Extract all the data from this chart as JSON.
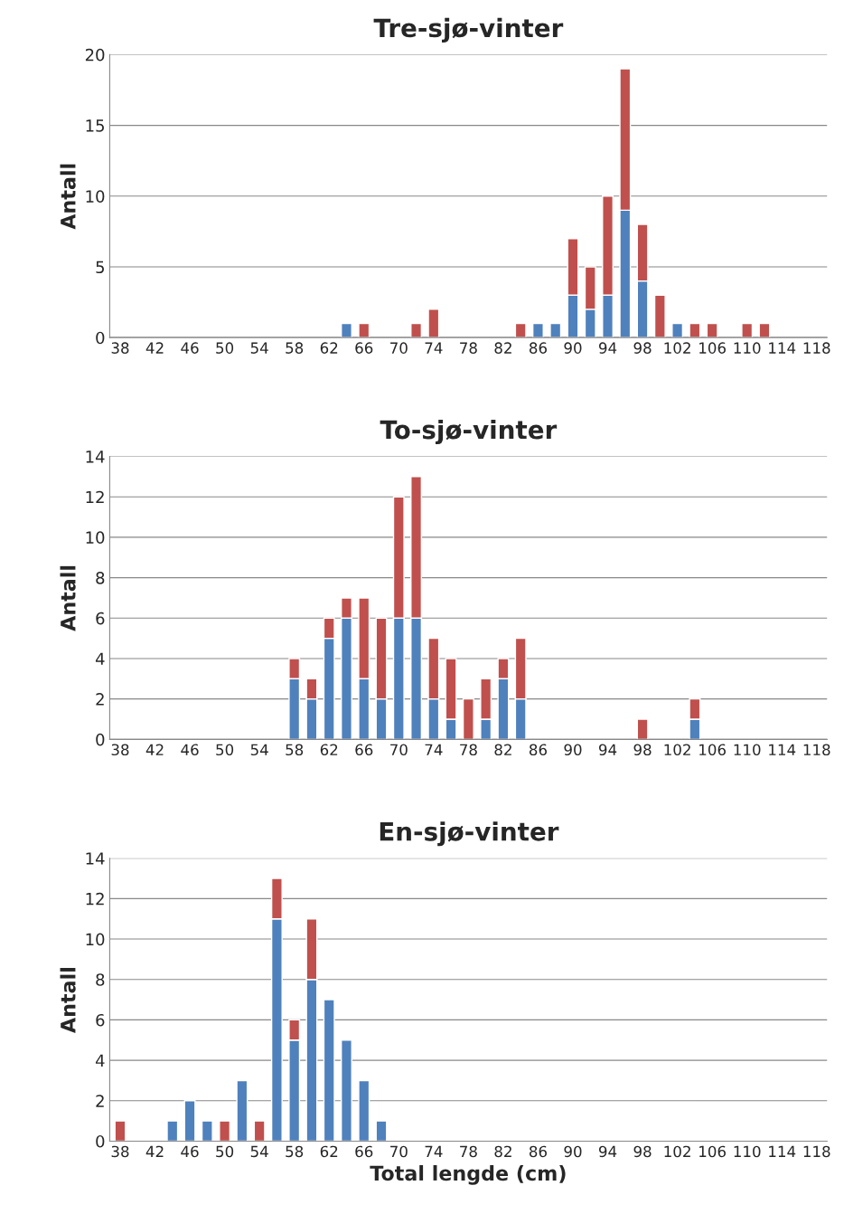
{
  "chart_data": [
    {
      "type": "bar",
      "title": "Tre-sjø-vinter",
      "ylabel": "Antall",
      "stacked": true,
      "grid": "y",
      "ylim": [
        0,
        20
      ],
      "yticks": [
        0,
        5,
        10,
        15,
        20
      ],
      "categories": [
        "38",
        null,
        "42",
        null,
        "46",
        null,
        "50",
        null,
        "54",
        null,
        "58",
        null,
        "62",
        null,
        "66",
        null,
        "70",
        null,
        "74",
        null,
        "78",
        null,
        "82",
        null,
        "86",
        null,
        "90",
        null,
        "94",
        null,
        "98",
        null,
        "102",
        null,
        "106",
        null,
        "110",
        null,
        "114",
        null,
        "118"
      ],
      "series": [
        {
          "color": "#4f81bd",
          "values": [
            null,
            null,
            null,
            null,
            null,
            null,
            null,
            null,
            null,
            null,
            null,
            null,
            null,
            1,
            null,
            null,
            null,
            null,
            null,
            null,
            null,
            null,
            null,
            null,
            1,
            1,
            3,
            2,
            3,
            9,
            4,
            null,
            1,
            null,
            null,
            null,
            null,
            null,
            null,
            null,
            null
          ]
        },
        {
          "color": "#c0504d",
          "values": [
            null,
            null,
            null,
            null,
            null,
            null,
            null,
            null,
            null,
            null,
            null,
            null,
            null,
            null,
            1,
            null,
            null,
            1,
            2,
            null,
            null,
            null,
            null,
            1,
            null,
            null,
            4,
            3,
            7,
            10,
            4,
            3,
            null,
            1,
            1,
            null,
            1,
            1,
            null,
            null,
            null
          ]
        }
      ]
    },
    {
      "type": "bar",
      "title": "To-sjø-vinter",
      "ylabel": "Antall",
      "stacked": true,
      "grid": "y",
      "ylim": [
        0,
        14
      ],
      "yticks": [
        0,
        2,
        4,
        6,
        8,
        10,
        12,
        14
      ],
      "categories": [
        "38",
        null,
        "42",
        null,
        "46",
        null,
        "50",
        null,
        "54",
        null,
        "58",
        null,
        "62",
        null,
        "66",
        null,
        "70",
        null,
        "74",
        null,
        "78",
        null,
        "82",
        null,
        "86",
        null,
        "90",
        null,
        "94",
        null,
        "98",
        null,
        "102",
        null,
        "106",
        null,
        "110",
        null,
        "114",
        null,
        "118"
      ],
      "series": [
        {
          "color": "#4f81bd",
          "values": [
            null,
            null,
            null,
            null,
            null,
            null,
            null,
            null,
            null,
            null,
            3,
            2,
            5,
            6,
            3,
            2,
            6,
            6,
            2,
            1,
            null,
            1,
            3,
            2,
            null,
            null,
            null,
            null,
            null,
            null,
            null,
            null,
            null,
            1,
            null,
            null,
            null,
            null,
            null,
            null,
            null
          ]
        },
        {
          "color": "#c0504d",
          "values": [
            null,
            null,
            null,
            null,
            null,
            null,
            null,
            null,
            null,
            null,
            1,
            1,
            1,
            1,
            4,
            4,
            6,
            7,
            3,
            3,
            2,
            2,
            1,
            3,
            null,
            null,
            null,
            null,
            null,
            null,
            1,
            null,
            null,
            1,
            null,
            null,
            null,
            null,
            null,
            null,
            null
          ]
        }
      ]
    },
    {
      "type": "bar",
      "title": "En-sjø-vinter",
      "ylabel": "Antall",
      "xlabel": "Total lengde (cm)",
      "stacked": true,
      "grid": "y",
      "ylim": [
        0,
        14
      ],
      "yticks": [
        0,
        2,
        4,
        6,
        8,
        10,
        12,
        14
      ],
      "categories": [
        "38",
        null,
        "42",
        null,
        "46",
        null,
        "50",
        null,
        "54",
        null,
        "58",
        null,
        "62",
        null,
        "66",
        null,
        "70",
        null,
        "74",
        null,
        "78",
        null,
        "82",
        null,
        "86",
        null,
        "90",
        null,
        "94",
        null,
        "98",
        null,
        "102",
        null,
        "106",
        null,
        "110",
        null,
        "114",
        null,
        "118"
      ],
      "series": [
        {
          "color": "#4f81bd",
          "values": [
            null,
            null,
            null,
            1,
            2,
            1,
            null,
            3,
            null,
            11,
            5,
            8,
            7,
            5,
            3,
            1,
            null,
            null,
            null,
            null,
            null,
            null,
            null,
            null,
            null,
            null,
            null,
            null,
            null,
            null,
            null,
            null,
            null,
            null,
            null,
            null,
            null,
            null,
            null,
            null,
            null
          ]
        },
        {
          "color": "#c0504d",
          "values": [
            1,
            null,
            null,
            null,
            null,
            null,
            1,
            null,
            1,
            2,
            1,
            3,
            null,
            null,
            null,
            null,
            null,
            null,
            null,
            null,
            null,
            null,
            null,
            null,
            null,
            null,
            null,
            null,
            null,
            null,
            null,
            null,
            null,
            null,
            null,
            null,
            null,
            null,
            null,
            null,
            null
          ]
        }
      ]
    }
  ]
}
